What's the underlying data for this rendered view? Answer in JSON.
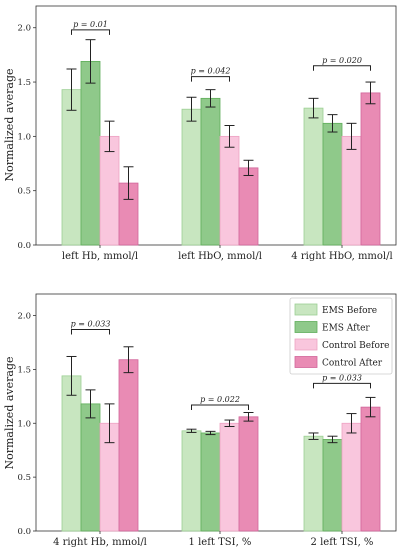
{
  "chart_data": [
    {
      "type": "bar",
      "ylabel": "Normalized average",
      "ylim": [
        0,
        2.2
      ],
      "yticks": [
        "0.0",
        "0.5",
        "1.0",
        "1.5",
        "2.0"
      ],
      "categories": [
        "left Hb, mmol/l",
        "left HbO, mmol/l",
        "4 right HbO, mmol/l"
      ],
      "series": [
        {
          "values": [
            1.43,
            1.25,
            1.26
          ],
          "errors": [
            0.19,
            0.11,
            0.09
          ],
          "color": "#c8e6c0"
        },
        {
          "values": [
            1.69,
            1.35,
            1.12
          ],
          "errors": [
            0.2,
            0.08,
            0.08
          ],
          "color": "#8fc98a"
        },
        {
          "values": [
            1.0,
            1.0,
            1.0
          ],
          "errors": [
            0.14,
            0.1,
            0.12
          ],
          "color": "#f9c6dd"
        },
        {
          "values": [
            0.57,
            0.71,
            1.4
          ],
          "errors": [
            0.15,
            0.07,
            0.1
          ],
          "color": "#e98bb4"
        }
      ],
      "annotations": [
        {
          "text": "p = 0.01",
          "category": 0,
          "from_series": 0,
          "to_series": 2,
          "level": 1.98
        },
        {
          "text": "p = 0.042",
          "category": 1,
          "from_series": 0,
          "to_series": 2,
          "level": 1.55
        },
        {
          "text": "p = 0.020",
          "category": 2,
          "from_series": 0,
          "to_series": 3,
          "level": 1.65
        }
      ],
      "legend": null,
      "grid": false
    },
    {
      "type": "bar",
      "ylabel": "Normalized average",
      "ylim": [
        0,
        2.2
      ],
      "yticks": [
        "0.0",
        "0.5",
        "1.0",
        "1.5",
        "2.0"
      ],
      "categories": [
        "4 right Hb, mmol/l",
        "1 left TSI, %",
        "2 left TSI, %"
      ],
      "series": [
        {
          "name": "EMS Before",
          "values": [
            1.44,
            0.93,
            0.88
          ],
          "errors": [
            0.18,
            0.015,
            0.03
          ],
          "color": "#c8e6c0"
        },
        {
          "name": "EMS After",
          "values": [
            1.18,
            0.91,
            0.85
          ],
          "errors": [
            0.13,
            0.015,
            0.03
          ],
          "color": "#8fc98a"
        },
        {
          "name": "Control Before",
          "values": [
            1.0,
            1.0,
            1.0
          ],
          "errors": [
            0.18,
            0.03,
            0.09
          ],
          "color": "#f9c6dd"
        },
        {
          "name": "Control After",
          "values": [
            1.59,
            1.06,
            1.15
          ],
          "errors": [
            0.12,
            0.04,
            0.09
          ],
          "color": "#e98bb4"
        }
      ],
      "annotations": [
        {
          "text": "p = 0.033",
          "category": 0,
          "from_series": 0,
          "to_series": 2,
          "level": 1.87
        },
        {
          "text": "p = 0.022",
          "category": 1,
          "from_series": 0,
          "to_series": 3,
          "level": 1.17
        },
        {
          "text": "p = 0.033",
          "category": 2,
          "from_series": 0,
          "to_series": 3,
          "level": 1.37
        }
      ],
      "legend": "top-right",
      "grid": false
    }
  ]
}
